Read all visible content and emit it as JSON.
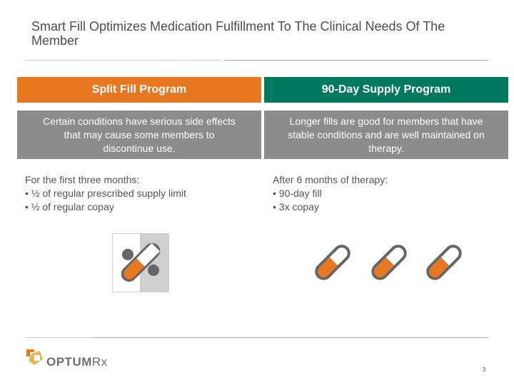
{
  "slide": {
    "title": "Smart Fill Optimizes Medication Fulfillment To The Clinical Needs Of The Member",
    "page_number": "3"
  },
  "left": {
    "header": "Split Fill Program",
    "description": "Certain conditions have serious side effects that may cause some members to discontinue use.",
    "detail_lines": [
      "For the first three months:",
      "• ½ of regular prescribed supply limit",
      "• ½ of regular copay"
    ]
  },
  "right": {
    "header": "90-Day Supply Program",
    "description": "Longer fills are good for members that have stable conditions and are well maintained on therapy.",
    "detail_lines": [
      "After 6 months of therapy:",
      "• 90-day fill",
      "• 3x copay"
    ]
  },
  "logo": {
    "wordmark_main": "OPTUM",
    "wordmark_suffix": "Rx",
    "icon": "optum-logo-icon"
  },
  "colors": {
    "accent_orange": "#e87722",
    "accent_green": "#007a5e",
    "desc_gray": "#8c8c8c",
    "pill_dark": "#666666"
  },
  "icons": {
    "capsule": "capsule-icon",
    "split_capsule": "half-capsule-icon"
  }
}
